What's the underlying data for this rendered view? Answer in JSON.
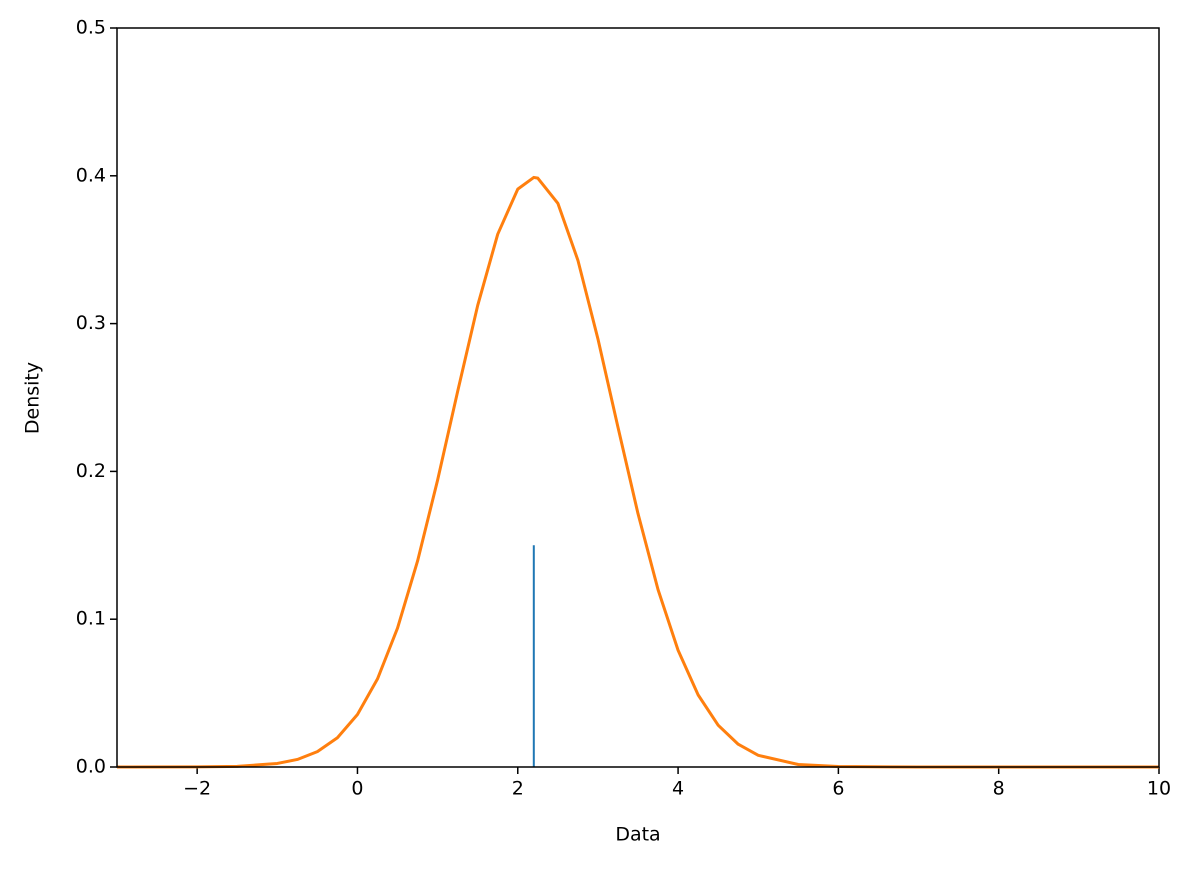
{
  "chart_data": {
    "type": "line",
    "xlabel": "Data",
    "ylabel": "Density",
    "xlim": [
      -3,
      10
    ],
    "ylim": [
      0,
      0.5
    ],
    "xticks": [
      {
        "value": -2,
        "label": "−2"
      },
      0,
      2,
      4,
      6,
      8,
      10
    ],
    "yticks": [
      {
        "value": 0,
        "label": "0.0"
      },
      0.1,
      0.2,
      0.3,
      0.4,
      0.5
    ],
    "series": [
      {
        "color": "#ff7f0e",
        "x": [
          -3,
          -2,
          -1.5,
          -1,
          -0.75,
          -0.5,
          -0.25,
          0,
          0.25,
          0.5,
          0.75,
          1,
          1.25,
          1.5,
          1.75,
          2,
          2.2,
          2.25,
          2.5,
          2.75,
          3,
          3.25,
          3.5,
          3.75,
          4,
          4.25,
          4.5,
          4.75,
          5,
          5.5,
          6,
          7,
          8,
          10
        ],
        "values": [
          0,
          6e-05,
          0.00042,
          0.0024,
          0.0051,
          0.0104,
          0.0198,
          0.0355,
          0.0596,
          0.094,
          0.1394,
          0.1942,
          0.2541,
          0.3123,
          0.3605,
          0.391,
          0.3989,
          0.3984,
          0.3814,
          0.3429,
          0.2897,
          0.2299,
          0.1714,
          0.12,
          0.079,
          0.0488,
          0.0283,
          0.0154,
          0.0079,
          0.0017,
          0.0003,
          0,
          0,
          0
        ]
      }
    ],
    "vline": {
      "x": 2.2,
      "ymin": 0,
      "ymax": 0.15,
      "color": "#1f77b4"
    }
  }
}
